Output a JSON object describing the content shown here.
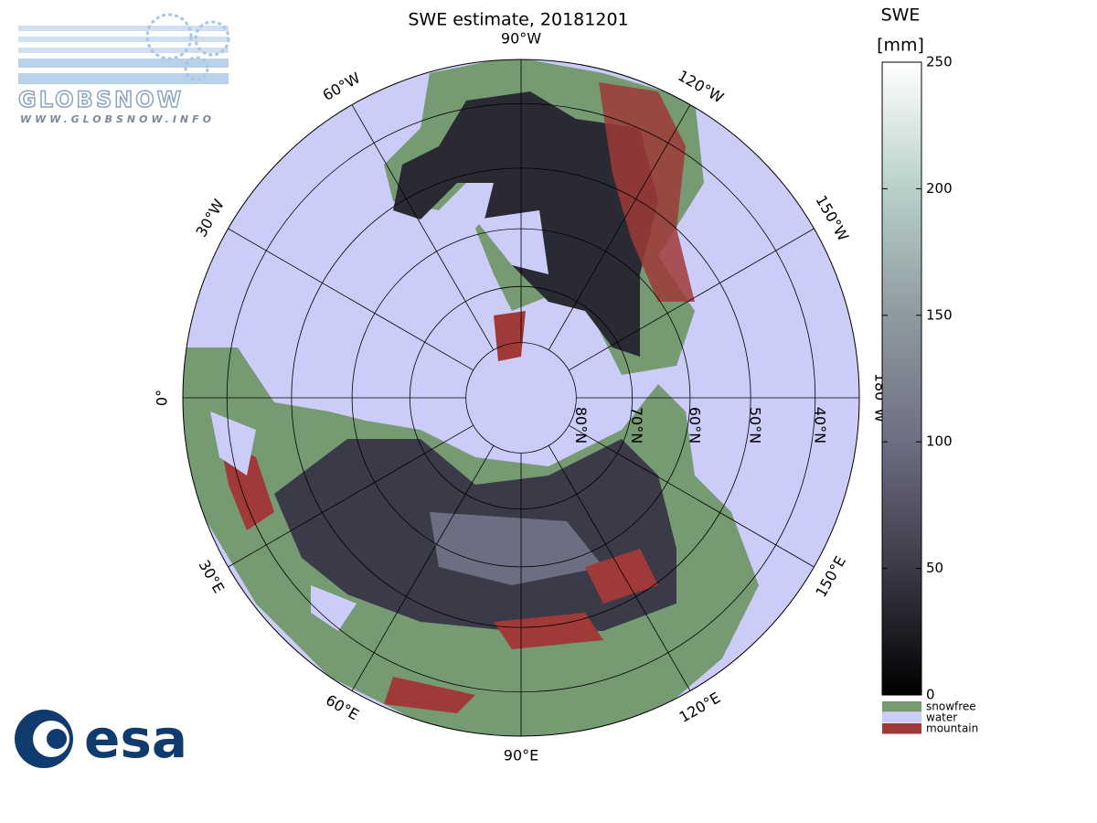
{
  "title": "SWE estimate, 20181201",
  "colorbar": {
    "label_line1": "SWE",
    "label_line2": "[mm]",
    "lim": [
      0,
      250
    ],
    "ticks": [
      0,
      50,
      100,
      150,
      200,
      250
    ],
    "colors": [
      "#000000",
      "#3a3a48",
      "#6e6e82",
      "#8f9aa0",
      "#b8d0ca",
      "#ffffff"
    ]
  },
  "legend": [
    {
      "name": "snowfree",
      "color": "#769a72"
    },
    {
      "name": "water",
      "color": "#ccccf9"
    },
    {
      "name": "mountain",
      "color": "#a03a38"
    }
  ],
  "meridians": [
    {
      "lon": -90,
      "label": "90°W"
    },
    {
      "lon": -120,
      "label": "120°W"
    },
    {
      "lon": -150,
      "label": "150°W"
    },
    {
      "lon": 180,
      "label": "180°W"
    },
    {
      "lon": 150,
      "label": "150°E"
    },
    {
      "lon": 120,
      "label": "120°E"
    },
    {
      "lon": 90,
      "label": "90°E"
    },
    {
      "lon": 60,
      "label": "60°E"
    },
    {
      "lon": 30,
      "label": "30°E"
    },
    {
      "lon": 0,
      "label": "0°"
    },
    {
      "lon": -30,
      "label": "30°W"
    },
    {
      "lon": -60,
      "label": "60°W"
    }
  ],
  "parallels": [
    {
      "lat": 80,
      "label": "80°N"
    },
    {
      "lat": 70,
      "label": "70°N"
    },
    {
      "lat": 60,
      "label": "60°N"
    },
    {
      "lat": 50,
      "label": "50°N"
    },
    {
      "lat": 40,
      "label": "40°N"
    }
  ],
  "logos": {
    "globsnow": "GLOBSNOW",
    "url": "WWW.GLOBSNOW.INFO",
    "esa": "esa"
  }
}
